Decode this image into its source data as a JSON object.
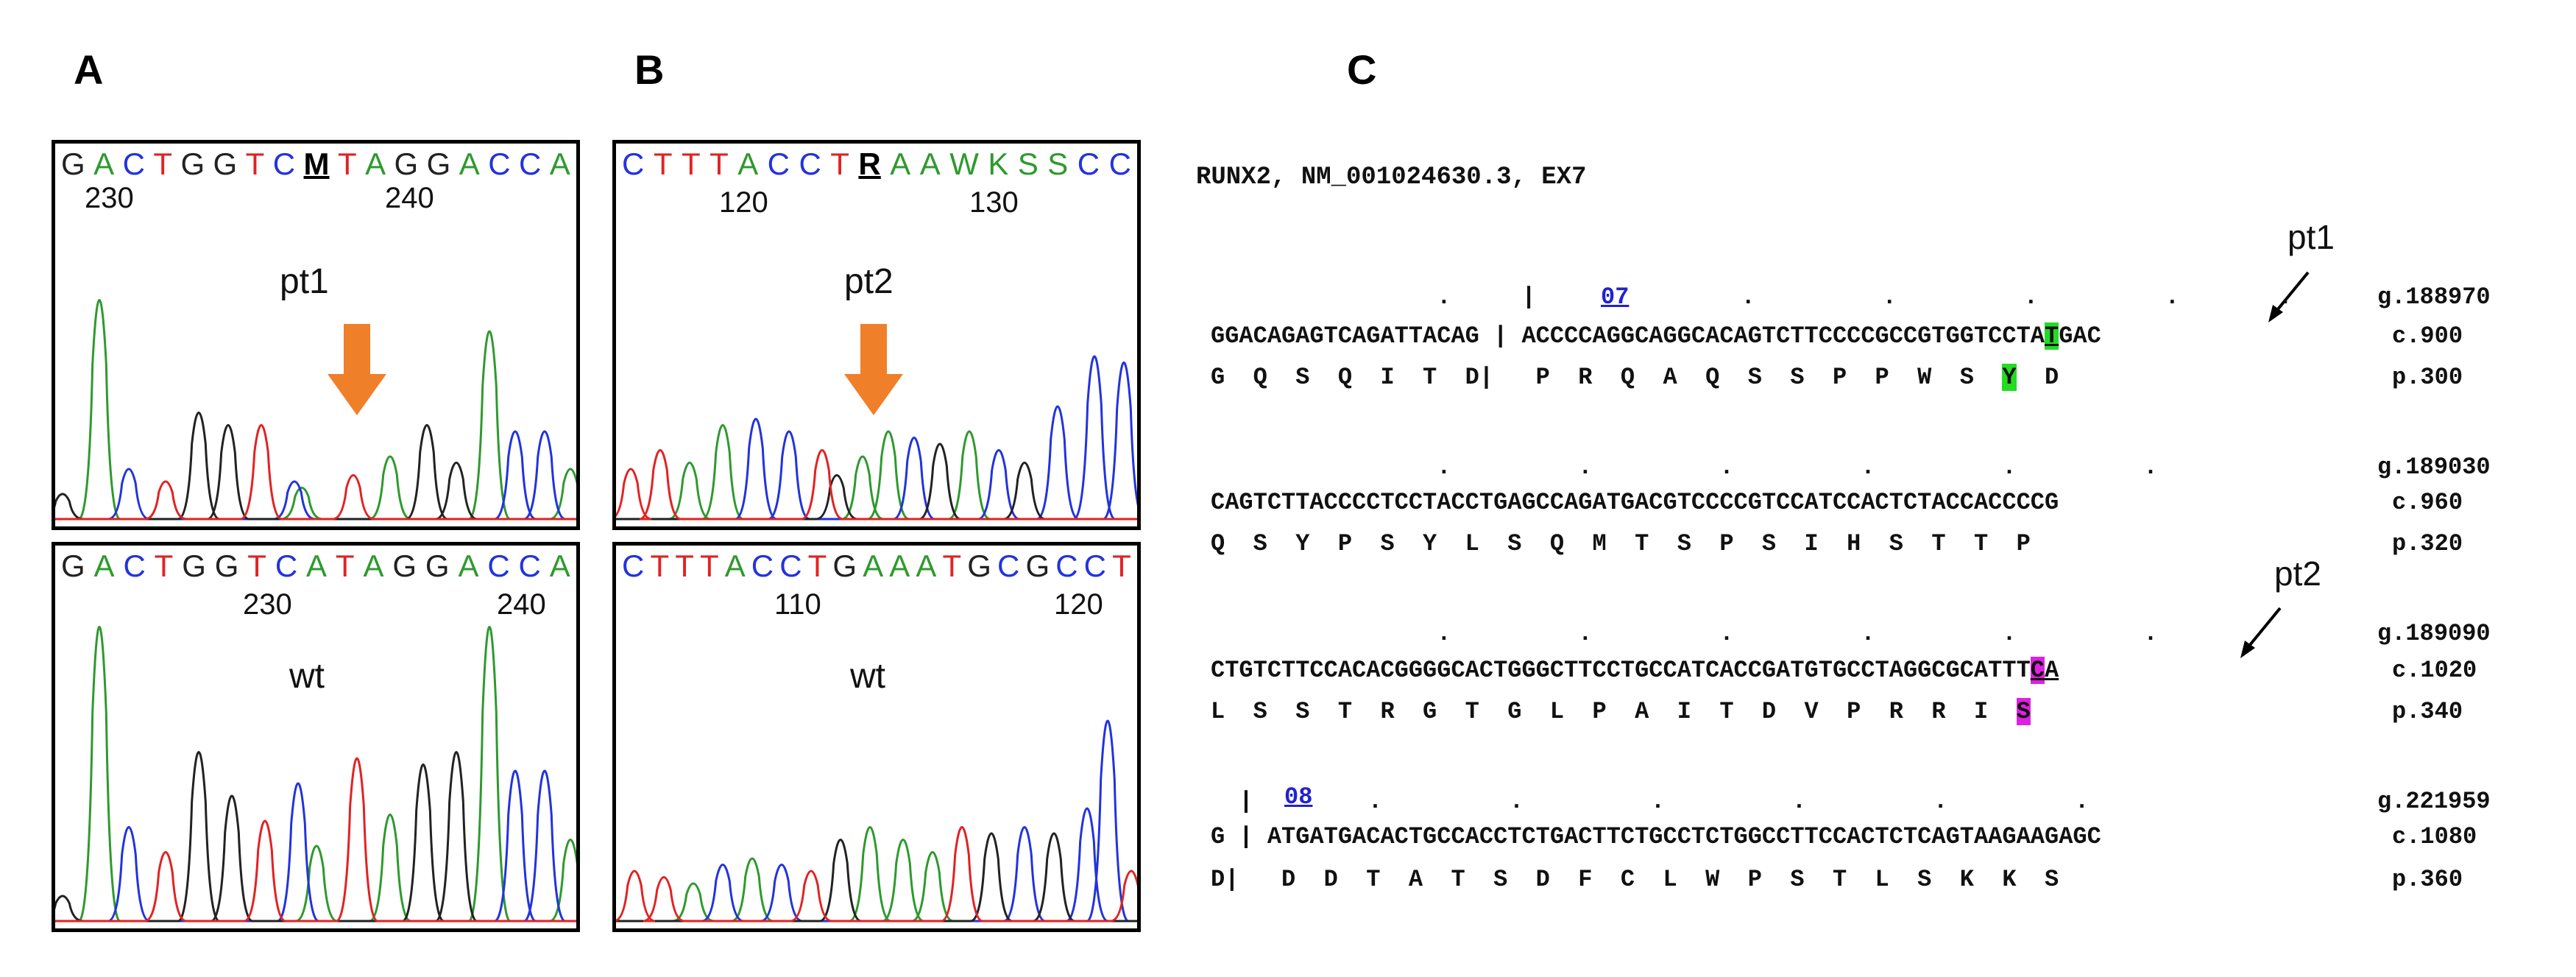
{
  "panels": {
    "A": {
      "letter": "A",
      "top": {
        "bases": [
          "G",
          "A",
          "C",
          "T",
          "G",
          "G",
          "T",
          "C",
          "M",
          "T",
          "A",
          "G",
          "G",
          "A",
          "C",
          "C",
          "A"
        ],
        "ambiguous_index": 8,
        "pos_labels": [
          "230",
          "240"
        ],
        "sample": "pt1"
      },
      "bottom": {
        "bases": [
          "G",
          "A",
          "C",
          "T",
          "G",
          "G",
          "T",
          "C",
          "A",
          "T",
          "A",
          "G",
          "G",
          "A",
          "C",
          "C",
          "A"
        ],
        "pos_labels": [
          "230",
          "240"
        ],
        "sample": "wt"
      }
    },
    "B": {
      "letter": "B",
      "top": {
        "bases": [
          "C",
          "T",
          "T",
          "T",
          "A",
          "C",
          "C",
          "T",
          "R",
          "A",
          "A",
          "W",
          "K",
          "S",
          "S",
          "C",
          "C"
        ],
        "ambiguous_index": 8,
        "pos_labels": [
          "120",
          "130"
        ],
        "sample": "pt2"
      },
      "bottom": {
        "bases": [
          "C",
          "T",
          "T",
          "T",
          "A",
          "C",
          "C",
          "T",
          "G",
          "A",
          "A",
          "A",
          "T",
          "G",
          "C",
          "G",
          "C",
          "C",
          "T"
        ],
        "pos_labels": [
          "110",
          "120"
        ],
        "sample": "wt"
      }
    },
    "C": {
      "letter": "C",
      "header": "RUNX2, NM_001024630.3, EX7",
      "pt1_label": "pt1",
      "pt2_label": "pt2",
      "blocks": [
        {
          "dots": "                .     | 07    .         .         .         .       .",
          "exon_label": "07",
          "seq_pre": "GGACAGAGTCAGATTACAG | ACCCCAGGCAGGCACAGTCTTCCCCGCCGTGGTCCTA",
          "seq_hl": "T",
          "seq_post": "GAC",
          "aa_pre": "G  Q  S  Q  I  T  D|   P  R  Q  A  Q  S  S  P  P  W  S  ",
          "aa_hl": "Y",
          "aa_post": "  D",
          "g": "g.188970",
          "c": "c.900",
          "p": "p.300"
        },
        {
          "dots": "                .         .         .         .         .         .",
          "seq": "CAGTCTTACCCCTCCTACCTGAGCCAGATGACGTCCCCGTCCATCCACTCTACCACCCCG",
          "aa": "Q  S  Y  P  S  Y  L  S  Q  M  T  S  P  S  I  H  S  T  T  P",
          "g": "g.189030",
          "c": "c.960",
          "p": "p.320"
        },
        {
          "dots": "                .         .         .         .         .         .",
          "seq_pre": "CTGTCTTCCACACGGGGCACTGGGCTTCCTGCCATCACCGATGTGCCTAGGCGCATTT",
          "seq_hl": "C",
          "seq_post": "A",
          "aa_pre": "L  S  S  T  R  G  T  G  L  P  A  I  T  D  V  P  R  R  I  ",
          "aa_hl": "S",
          "g": "g.189090",
          "c": "c.1020",
          "p": "p.340"
        },
        {
          "dots": "  | 08    .         .         .         .         .         .",
          "exon_label": "08",
          "seq": "G | ATGATGACACTGCCACCTCTGACTTCTGCCTCTGGCCTTCCACTCTCAGTAAGAAGAGC",
          "aa": "D|   D  D  T  A  T  S  D  F  C  L  W  P  S  T  L  S  K  K  S",
          "g": "g.221959",
          "c": "c.1080",
          "p": "p.360"
        }
      ]
    }
  },
  "colors": {
    "A": "#2e9a2e",
    "C": "#2233dd",
    "G": "#222222",
    "T": "#e22222",
    "arrow": "#f07f2a",
    "hl_green": "#22dd22",
    "hl_magenta": "#e020e0"
  }
}
